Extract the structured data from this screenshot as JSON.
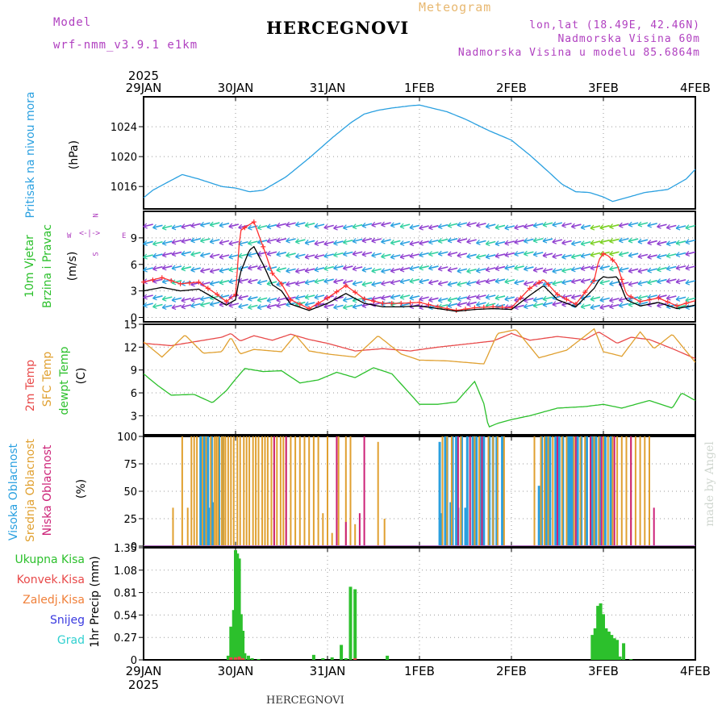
{
  "header": {
    "model_label": "Model",
    "model_name": "wrf-nmm_v3.9.1 e1km",
    "title": "HERCEGNOVI",
    "meteogram": "Meteogram",
    "lonlat": "lon,lat (18.49E, 42.46N)",
    "elevation": "Nadmorska Visina 60m",
    "model_elevation": "Nadmorska Visina u modelu 85.6864m",
    "watermark": "made by Angel",
    "footer_station": "HERCEGNOVI"
  },
  "colors": {
    "pressure": "#2aa0e0",
    "t2m": "#e84a4a",
    "sfc": "#e0a030",
    "dewpt": "#2cc02c",
    "wind_speed": "#000000",
    "wind_gust": "#ff3030",
    "high_cloud": "#2aa0e0",
    "mid_cloud": "#e0a030",
    "low_cloud": "#cc2277",
    "total_precip": "#2cc02c",
    "conv_precip": "#e84a4a",
    "ice": "#f0803a",
    "snow": "#3a3ae0",
    "hail": "#30d0d0",
    "compass": "#b040c0"
  },
  "chart_data": [
    {
      "type": "line",
      "id": "pressure",
      "year": "2025",
      "x_ticks": [
        "29JAN",
        "30JAN",
        "31JAN",
        "1FEB",
        "2FEB",
        "3FEB",
        "4FEB"
      ],
      "ylabel": [
        "Pritisak na nivou mora",
        "(hPa)"
      ],
      "yticks": [
        1016,
        1020,
        1024
      ],
      "ylim": [
        1013,
        1028
      ],
      "grid": true,
      "series": [
        {
          "name": "Pritisak na nivou mora",
          "x": [
            0,
            0.1,
            0.25,
            0.42,
            0.6,
            0.85,
            1.0,
            1.15,
            1.3,
            1.55,
            1.8,
            2.05,
            2.25,
            2.4,
            2.55,
            2.7,
            2.9,
            3.0,
            3.1,
            3.3,
            3.5,
            3.75,
            4.0,
            4.2,
            4.4,
            4.55,
            4.7,
            4.85,
            5.0,
            5.1,
            5.25,
            5.45,
            5.7,
            5.9,
            6.0
          ],
          "values": [
            1014.5,
            1015.5,
            1016.5,
            1017.6,
            1017.0,
            1016.0,
            1015.8,
            1015.3,
            1015.5,
            1017.3,
            1019.8,
            1022.5,
            1024.5,
            1025.7,
            1026.2,
            1026.5,
            1026.8,
            1026.9,
            1026.6,
            1026.0,
            1025.0,
            1023.5,
            1022.2,
            1020.2,
            1018.0,
            1016.3,
            1015.3,
            1015.2,
            1014.6,
            1014.0,
            1014.5,
            1015.2,
            1015.6,
            1017.0,
            1018.3
          ]
        }
      ]
    },
    {
      "type": "line",
      "id": "wind",
      "ylabel": [
        "10m Vjetar",
        "Brzina i Pravac",
        "(m/s)"
      ],
      "compass": {
        "n": "N",
        "s": "S",
        "e": "E",
        "w": "W"
      },
      "yticks": [
        0,
        3,
        6,
        9
      ],
      "ylim": [
        -0.5,
        12
      ],
      "grid": true,
      "series": [
        {
          "name": "speed",
          "x": [
            0,
            0.2,
            0.4,
            0.6,
            0.8,
            0.9,
            1.0,
            1.05,
            1.15,
            1.2,
            1.3,
            1.4,
            1.5,
            1.6,
            1.8,
            2.0,
            2.2,
            2.4,
            2.6,
            2.8,
            3.0,
            3.2,
            3.4,
            3.6,
            3.8,
            4.0,
            4.2,
            4.35,
            4.5,
            4.7,
            4.9,
            4.95,
            5.0,
            5.05,
            5.15,
            5.25,
            5.4,
            5.6,
            5.8,
            6.0
          ],
          "values": [
            3.0,
            3.4,
            3.0,
            3.2,
            2.0,
            1.4,
            2.0,
            5.0,
            7.6,
            8.0,
            6.0,
            3.7,
            3.0,
            1.5,
            0.8,
            1.6,
            2.7,
            1.6,
            1.2,
            1.2,
            1.3,
            1.0,
            0.7,
            0.9,
            1.0,
            0.9,
            2.5,
            3.6,
            2.0,
            1.2,
            3.3,
            4.2,
            4.6,
            4.5,
            4.6,
            2.0,
            1.3,
            1.7,
            1.0,
            1.4
          ]
        },
        {
          "name": "gust",
          "x": [
            0,
            0.2,
            0.4,
            0.6,
            0.8,
            0.9,
            1.0,
            1.05,
            1.15,
            1.2,
            1.3,
            1.4,
            1.5,
            1.6,
            1.8,
            2.0,
            2.2,
            2.4,
            2.6,
            2.8,
            3.0,
            3.2,
            3.4,
            3.6,
            3.8,
            4.0,
            4.2,
            4.35,
            4.5,
            4.7,
            4.9,
            4.95,
            5.0,
            5.05,
            5.15,
            5.25,
            5.4,
            5.6,
            5.8,
            6.0
          ],
          "values": [
            4.0,
            4.5,
            3.8,
            4.0,
            2.6,
            1.8,
            2.6,
            9.8,
            10.5,
            10.8,
            8.0,
            5.0,
            3.8,
            2.0,
            1.0,
            2.2,
            3.6,
            2.1,
            1.6,
            1.6,
            1.7,
            1.2,
            0.8,
            1.1,
            1.2,
            1.1,
            3.3,
            4.3,
            2.6,
            1.5,
            4.2,
            6.5,
            7.2,
            7.0,
            6.0,
            2.6,
            1.8,
            2.2,
            1.3,
            1.9
          ]
        }
      ]
    },
    {
      "type": "line",
      "id": "temperature",
      "ylabel": [
        "2m Temp",
        "SFC Temp",
        "dewpt Temp",
        "(C)"
      ],
      "yticks": [
        3,
        6,
        9,
        12,
        15
      ],
      "ylim": [
        0.5,
        15
      ],
      "grid": true,
      "series": [
        {
          "name": "2m Temp",
          "x": [
            0,
            0.3,
            0.6,
            0.85,
            0.95,
            1.05,
            1.2,
            1.4,
            1.6,
            1.8,
            2.0,
            2.3,
            2.6,
            2.9,
            3.2,
            3.5,
            3.8,
            4.0,
            4.2,
            4.5,
            4.8,
            4.95,
            5.15,
            5.3,
            5.5,
            5.75,
            6.0
          ],
          "values": [
            12.5,
            12.2,
            12.8,
            13.3,
            13.8,
            12.8,
            13.5,
            12.9,
            13.7,
            13.0,
            12.5,
            11.5,
            11.8,
            11.5,
            12.0,
            12.4,
            12.8,
            13.8,
            12.9,
            13.4,
            13.0,
            14.0,
            12.5,
            13.3,
            13.0,
            11.8,
            10.5
          ]
        },
        {
          "name": "SFC Temp",
          "x": [
            0,
            0.2,
            0.45,
            0.65,
            0.85,
            0.95,
            1.05,
            1.2,
            1.5,
            1.65,
            1.8,
            2.0,
            2.3,
            2.55,
            2.8,
            3.0,
            3.3,
            3.7,
            3.85,
            4.05,
            4.3,
            4.6,
            4.9,
            5.0,
            5.2,
            5.4,
            5.55,
            5.75,
            6.0
          ],
          "values": [
            12.7,
            10.7,
            13.6,
            11.2,
            11.4,
            13.3,
            11.1,
            11.7,
            11.4,
            13.6,
            11.5,
            11.1,
            10.7,
            13.5,
            11.1,
            10.3,
            10.2,
            9.8,
            13.8,
            14.3,
            10.6,
            11.6,
            14.4,
            11.4,
            10.8,
            14.0,
            11.8,
            13.7,
            10.0
          ]
        },
        {
          "name": "dewpt Temp",
          "x": [
            0,
            0.15,
            0.3,
            0.55,
            0.75,
            0.9,
            1.0,
            1.1,
            1.3,
            1.5,
            1.7,
            1.9,
            2.1,
            2.3,
            2.5,
            2.7,
            3.0,
            3.2,
            3.4,
            3.6,
            3.7,
            3.75,
            3.85,
            4.0,
            4.2,
            4.5,
            4.8,
            5.0,
            5.2,
            5.5,
            5.75,
            5.85,
            6.0
          ],
          "values": [
            8.5,
            7.0,
            5.7,
            5.8,
            4.7,
            6.3,
            7.8,
            9.2,
            8.8,
            8.9,
            7.3,
            7.7,
            8.7,
            8.0,
            9.3,
            8.5,
            4.5,
            4.5,
            4.8,
            7.5,
            4.6,
            1.5,
            2.0,
            2.5,
            3.0,
            4.0,
            4.2,
            4.5,
            4.0,
            5.0,
            4.0,
            6.0,
            5.0
          ]
        }
      ]
    },
    {
      "type": "bar",
      "id": "cloud",
      "ylabel": [
        "Visoka Oblacnost",
        "Srednja Oblacnost",
        "Niska Oblacnost",
        "(%)"
      ],
      "yticks": [
        0,
        25,
        50,
        75,
        100
      ],
      "ylim": [
        0,
        100
      ],
      "grid": true,
      "series": [
        {
          "name": "Visoka Oblacnost",
          "x": [
            0.62,
            0.63,
            0.66,
            0.67,
            0.7,
            0.71,
            0.74,
            0.76,
            0.82,
            0.86,
            3.22,
            3.24,
            3.28,
            3.3,
            3.34,
            3.36,
            3.4,
            3.42,
            3.46,
            3.5,
            3.52,
            3.58,
            3.62,
            3.66,
            3.7,
            3.76,
            3.8,
            3.84,
            3.9,
            4.3,
            4.33,
            4.38,
            4.42,
            4.48,
            4.52,
            4.56,
            4.62,
            4.64,
            4.66,
            4.72,
            4.76,
            4.82,
            4.88,
            4.92,
            4.96,
            5.02,
            5.08
          ],
          "values": [
            100,
            60,
            100,
            100,
            100,
            35,
            100,
            40,
            100,
            100,
            95,
            30,
            100,
            100,
            40,
            100,
            100,
            35,
            100,
            35,
            100,
            100,
            100,
            100,
            100,
            100,
            100,
            100,
            100,
            55,
            100,
            100,
            100,
            100,
            100,
            100,
            100,
            100,
            100,
            100,
            100,
            100,
            100,
            100,
            100,
            100,
            100
          ]
        },
        {
          "name": "Srednja Oblacnost",
          "x": [
            0.32,
            0.42,
            0.48,
            0.52,
            0.55,
            0.58,
            0.64,
            0.68,
            0.73,
            0.77,
            0.79,
            0.81,
            0.85,
            0.87,
            0.89,
            0.92,
            0.95,
            0.98,
            1.02,
            1.05,
            1.09,
            1.12,
            1.15,
            1.19,
            1.22,
            1.25,
            1.29,
            1.32,
            1.35,
            1.39,
            1.42,
            1.45,
            1.49,
            1.52,
            1.55,
            1.6,
            1.65,
            1.7,
            1.75,
            1.8,
            1.85,
            1.9,
            1.95,
            2.0,
            2.05,
            2.12,
            2.2,
            2.25,
            2.3,
            2.55,
            2.62,
            3.25,
            3.3,
            3.35,
            3.45,
            3.55,
            3.6,
            3.65,
            3.75,
            3.8,
            3.85,
            3.92,
            4.25,
            4.32,
            4.36,
            4.4,
            4.45,
            4.5,
            4.55,
            4.6,
            4.68,
            4.75,
            4.8,
            4.86,
            4.9,
            4.95,
            5.0,
            5.05,
            5.1,
            5.15,
            5.2,
            5.25,
            5.3,
            5.35,
            5.4,
            5.45,
            5.5
          ],
          "values": [
            35,
            100,
            35,
            100,
            100,
            100,
            100,
            100,
            100,
            100,
            100,
            100,
            100,
            100,
            100,
            100,
            100,
            100,
            100,
            100,
            100,
            100,
            100,
            100,
            100,
            100,
            100,
            100,
            100,
            100,
            100,
            100,
            100,
            100,
            100,
            100,
            100,
            100,
            100,
            100,
            100,
            100,
            30,
            100,
            12,
            100,
            100,
            100,
            20,
            95,
            25,
            100,
            100,
            100,
            100,
            100,
            100,
            100,
            100,
            100,
            100,
            100,
            100,
            100,
            100,
            100,
            100,
            100,
            100,
            100,
            100,
            100,
            100,
            100,
            100,
            100,
            100,
            100,
            100,
            100,
            100,
            100,
            100,
            100,
            100,
            100,
            100
          ]
        },
        {
          "name": "Niska Oblacnost",
          "x": [
            1.42,
            1.55,
            2.1,
            2.2,
            2.35,
            2.4,
            3.42,
            3.55,
            3.68,
            4.5,
            4.7,
            4.86,
            4.98,
            5.12,
            5.3,
            5.55
          ],
          "values": [
            100,
            100,
            100,
            22,
            30,
            100,
            100,
            100,
            100,
            100,
            100,
            100,
            100,
            100,
            100,
            35
          ]
        }
      ]
    },
    {
      "type": "bar",
      "id": "precip",
      "ylabel": [
        "1hr Precip (mm)"
      ],
      "legend": [
        "Ukupna Kisa",
        "Konvek.Kisa",
        "Zaledj.Kisa",
        "Snijeg",
        "Grad"
      ],
      "yticks": [
        0,
        0.27,
        0.54,
        0.81,
        1.08,
        1.35
      ],
      "ylim": [
        0,
        1.35
      ],
      "grid": true,
      "series": [
        {
          "name": "Ukupna Kisa",
          "x": [
            0.92,
            0.95,
            0.98,
            1.0,
            1.02,
            1.04,
            1.06,
            1.08,
            1.1,
            1.14,
            1.18,
            1.25,
            1.85,
            1.95,
            2.05,
            2.15,
            2.2,
            2.25,
            2.3,
            2.65,
            4.88,
            4.91,
            4.94,
            4.97,
            5.0,
            5.03,
            5.06,
            5.09,
            5.12,
            5.15,
            5.18,
            5.22,
            5.3
          ],
          "values": [
            0.05,
            0.4,
            0.6,
            1.32,
            1.28,
            1.22,
            0.55,
            0.35,
            0.08,
            0.05,
            0.02,
            0.01,
            0.06,
            0.02,
            0.03,
            0.18,
            0.02,
            0.88,
            0.85,
            0.05,
            0.3,
            0.38,
            0.65,
            0.68,
            0.55,
            0.38,
            0.34,
            0.3,
            0.26,
            0.24,
            0.04,
            0.2,
            0.01
          ]
        },
        {
          "name": "Konvek.Kisa",
          "x": [
            0.95,
            1.0,
            1.04,
            1.08,
            2.3
          ],
          "values": [
            0.03,
            0.03,
            0.04,
            0.02,
            0.02
          ]
        }
      ]
    }
  ]
}
